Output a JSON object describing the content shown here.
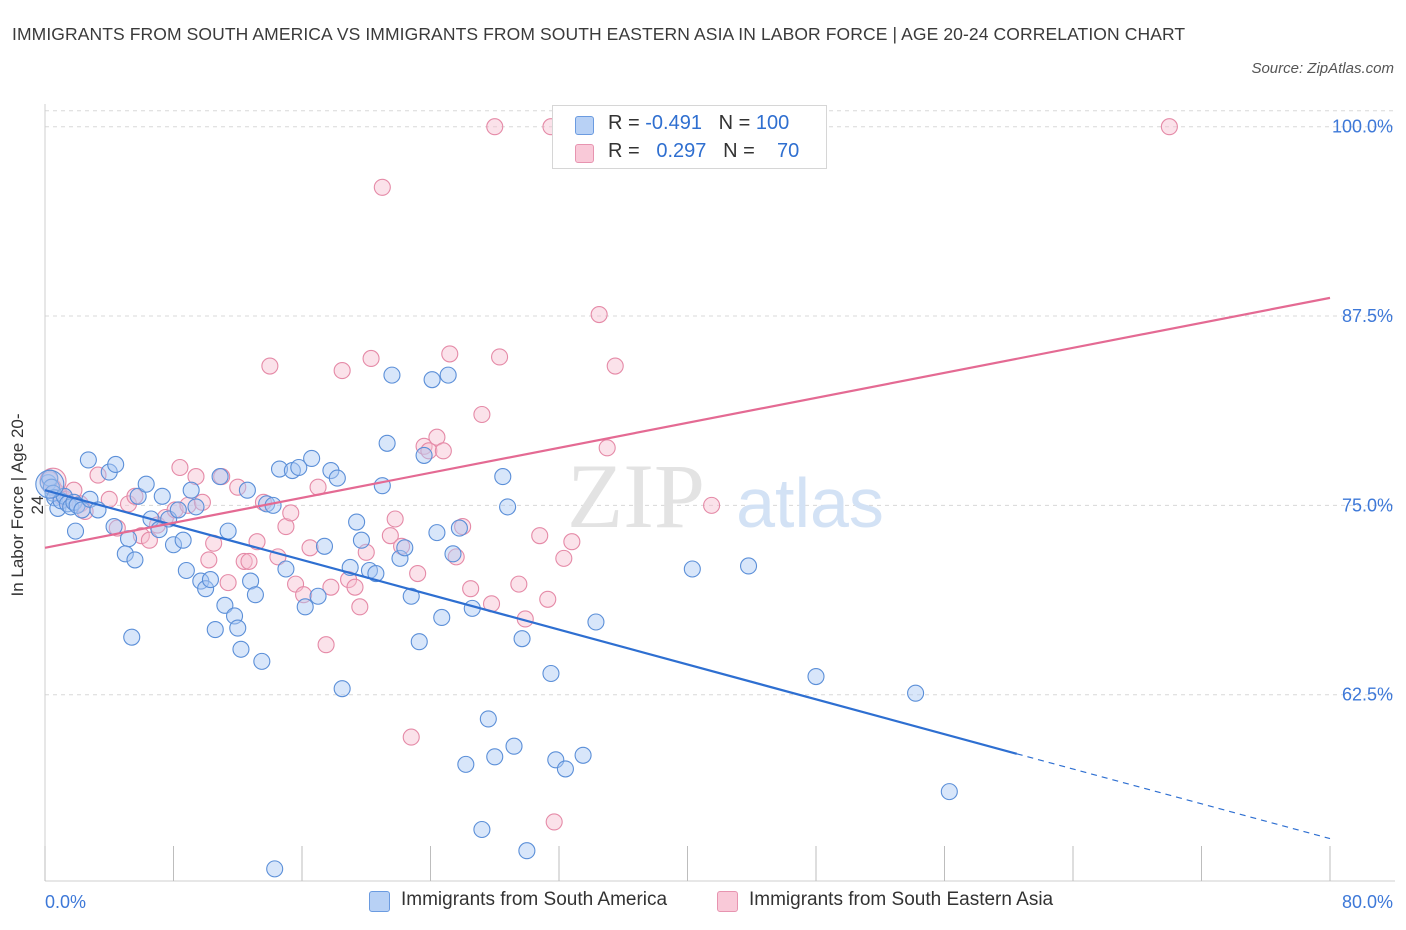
{
  "title": "IMMIGRANTS FROM SOUTH AMERICA VS IMMIGRANTS FROM SOUTH EASTERN ASIA IN LABOR FORCE | AGE 20-24 CORRELATION CHART",
  "source": "Source: ZipAtlas.com",
  "watermark": {
    "zip": "ZIP",
    "atlas": "atlas"
  },
  "legend": {
    "r_label": "R =",
    "n_label": "N =",
    "rows": [
      {
        "r": "-0.491",
        "n": "100"
      },
      {
        "r": "0.297",
        "n": "70"
      }
    ]
  },
  "colors": {
    "blue_fill": "#a9c8f3",
    "blue_stroke": "#5b8fd8",
    "blue_line": "#2e6fd1",
    "pink_fill": "#f7bfd0",
    "pink_stroke": "#e58aa7",
    "pink_line": "#e46a93",
    "tick_label": "#3d78d8",
    "grid": "#d8d8d8"
  },
  "chart_data": {
    "type": "scatter",
    "title": "IMMIGRANTS FROM SOUTH AMERICA VS IMMIGRANTS FROM SOUTH EASTERN ASIA IN LABOR FORCE | AGE 20-24 CORRELATION CHART",
    "xlabel": "",
    "ylabel": "In Labor Force | Age 20-24",
    "xlim": [
      0,
      80
    ],
    "ylim": [
      50.2,
      101.5
    ],
    "x_tick_labels": [
      "0.0%",
      "80.0%"
    ],
    "y_ticks": [
      62.5,
      75.0,
      87.5,
      100.0
    ],
    "y_tick_labels": [
      "62.5%",
      "75.0%",
      "87.5%",
      "100.0%"
    ],
    "grid": true,
    "legend_placement": "top-center",
    "series": [
      {
        "name": "Immigrants from South America",
        "color": "#5b8fd8",
        "trend": {
          "x": [
            0,
            60.5,
            80
          ],
          "y": [
            76.0,
            58.6,
            53.0
          ],
          "solid_until": 60.5
        },
        "points": [
          [
            0.2,
            76.5
          ],
          [
            0.3,
            76.8
          ],
          [
            0.4,
            76.2
          ],
          [
            0.5,
            75.8
          ],
          [
            0.6,
            75.5
          ],
          [
            0.8,
            74.8
          ],
          [
            1.0,
            75.3
          ],
          [
            1.2,
            75.6
          ],
          [
            1.4,
            75.1
          ],
          [
            1.6,
            74.9
          ],
          [
            1.8,
            75.2
          ],
          [
            2.0,
            75.0
          ],
          [
            2.3,
            74.7
          ],
          [
            2.8,
            75.4
          ],
          [
            1.9,
            73.3
          ],
          [
            2.7,
            78.0
          ],
          [
            4.0,
            77.2
          ],
          [
            4.4,
            77.7
          ],
          [
            3.3,
            74.7
          ],
          [
            4.3,
            73.6
          ],
          [
            5.2,
            72.8
          ],
          [
            5.0,
            71.8
          ],
          [
            5.6,
            71.4
          ],
          [
            5.4,
            66.3
          ],
          [
            5.8,
            75.6
          ],
          [
            6.3,
            76.4
          ],
          [
            6.6,
            74.1
          ],
          [
            7.1,
            73.4
          ],
          [
            7.3,
            75.6
          ],
          [
            7.7,
            74.1
          ],
          [
            8.0,
            72.4
          ],
          [
            8.3,
            74.7
          ],
          [
            8.6,
            72.7
          ],
          [
            8.8,
            70.7
          ],
          [
            9.1,
            76.0
          ],
          [
            9.4,
            74.9
          ],
          [
            9.7,
            70.0
          ],
          [
            10.0,
            69.5
          ],
          [
            10.3,
            70.1
          ],
          [
            10.6,
            66.8
          ],
          [
            10.9,
            76.9
          ],
          [
            11.2,
            68.4
          ],
          [
            11.4,
            73.3
          ],
          [
            11.8,
            67.7
          ],
          [
            12.0,
            66.9
          ],
          [
            12.2,
            65.5
          ],
          [
            12.6,
            76.0
          ],
          [
            12.8,
            70.0
          ],
          [
            13.1,
            69.1
          ],
          [
            13.5,
            64.7
          ],
          [
            13.8,
            75.1
          ],
          [
            14.2,
            75.0
          ],
          [
            14.6,
            77.4
          ],
          [
            15.0,
            70.8
          ],
          [
            15.4,
            77.3
          ],
          [
            15.8,
            77.5
          ],
          [
            16.2,
            68.3
          ],
          [
            16.6,
            78.1
          ],
          [
            17.0,
            69.0
          ],
          [
            17.4,
            72.3
          ],
          [
            17.8,
            77.3
          ],
          [
            18.2,
            76.8
          ],
          [
            18.5,
            62.9
          ],
          [
            19.0,
            70.9
          ],
          [
            19.4,
            73.9
          ],
          [
            19.7,
            72.7
          ],
          [
            20.2,
            70.7
          ],
          [
            20.6,
            70.5
          ],
          [
            21.0,
            76.3
          ],
          [
            21.3,
            79.1
          ],
          [
            21.6,
            83.6
          ],
          [
            22.1,
            71.5
          ],
          [
            22.4,
            72.2
          ],
          [
            22.8,
            69.0
          ],
          [
            23.3,
            66.0
          ],
          [
            23.6,
            78.3
          ],
          [
            24.1,
            83.3
          ],
          [
            24.4,
            73.2
          ],
          [
            24.7,
            67.6
          ],
          [
            25.1,
            83.6
          ],
          [
            25.4,
            71.8
          ],
          [
            25.8,
            73.5
          ],
          [
            26.2,
            57.9
          ],
          [
            26.6,
            68.2
          ],
          [
            27.2,
            53.6
          ],
          [
            27.6,
            60.9
          ],
          [
            28.0,
            58.4
          ],
          [
            28.5,
            76.9
          ],
          [
            28.8,
            74.9
          ],
          [
            29.2,
            59.1
          ],
          [
            29.7,
            66.2
          ],
          [
            30.0,
            52.2
          ],
          [
            31.5,
            63.9
          ],
          [
            31.8,
            58.2
          ],
          [
            32.4,
            57.6
          ],
          [
            33.5,
            58.5
          ],
          [
            34.3,
            67.3
          ],
          [
            40.3,
            70.8
          ],
          [
            43.8,
            71.0
          ],
          [
            48.0,
            63.7
          ],
          [
            54.2,
            62.6
          ],
          [
            56.3,
            56.1
          ],
          [
            14.3,
            51.0
          ]
        ]
      },
      {
        "name": "Immigrants from South Eastern Asia",
        "color": "#e58aa7",
        "trend": {
          "x": [
            0,
            80
          ],
          "y": [
            72.2,
            88.7
          ]
        },
        "points": [
          [
            0.3,
            76.7
          ],
          [
            0.5,
            76.2
          ],
          [
            0.7,
            75.9
          ],
          [
            1.0,
            75.6
          ],
          [
            1.3,
            75.4
          ],
          [
            1.8,
            76.0
          ],
          [
            2.2,
            75.1
          ],
          [
            2.5,
            74.6
          ],
          [
            3.3,
            77.0
          ],
          [
            4.0,
            75.4
          ],
          [
            4.5,
            73.5
          ],
          [
            5.2,
            75.1
          ],
          [
            5.6,
            75.6
          ],
          [
            6.0,
            73.0
          ],
          [
            6.5,
            72.7
          ],
          [
            7.0,
            73.7
          ],
          [
            7.5,
            74.2
          ],
          [
            8.1,
            74.7
          ],
          [
            8.4,
            77.5
          ],
          [
            8.9,
            75.0
          ],
          [
            9.4,
            76.9
          ],
          [
            9.8,
            75.2
          ],
          [
            10.2,
            71.4
          ],
          [
            10.5,
            72.5
          ],
          [
            11.0,
            76.9
          ],
          [
            11.4,
            69.9
          ],
          [
            12.0,
            76.2
          ],
          [
            12.4,
            71.3
          ],
          [
            12.7,
            71.3
          ],
          [
            13.2,
            72.6
          ],
          [
            13.6,
            75.2
          ],
          [
            14.0,
            84.2
          ],
          [
            14.5,
            71.6
          ],
          [
            15.0,
            73.6
          ],
          [
            15.3,
            74.5
          ],
          [
            15.6,
            69.8
          ],
          [
            16.1,
            69.1
          ],
          [
            16.5,
            72.2
          ],
          [
            17.0,
            76.2
          ],
          [
            17.5,
            65.8
          ],
          [
            17.8,
            69.6
          ],
          [
            18.5,
            83.9
          ],
          [
            18.9,
            70.1
          ],
          [
            19.3,
            69.6
          ],
          [
            19.6,
            68.3
          ],
          [
            20.0,
            71.9
          ],
          [
            20.3,
            84.7
          ],
          [
            21.0,
            96.0
          ],
          [
            21.5,
            73.0
          ],
          [
            21.8,
            74.1
          ],
          [
            22.2,
            72.3
          ],
          [
            22.8,
            59.7
          ],
          [
            23.2,
            70.5
          ],
          [
            23.6,
            78.9
          ],
          [
            23.9,
            78.6
          ],
          [
            24.4,
            79.5
          ],
          [
            24.8,
            78.6
          ],
          [
            25.2,
            85.0
          ],
          [
            25.6,
            71.6
          ],
          [
            26.0,
            73.6
          ],
          [
            26.5,
            69.5
          ],
          [
            27.2,
            81.0
          ],
          [
            27.8,
            68.5
          ],
          [
            28.3,
            84.8
          ],
          [
            29.5,
            69.8
          ],
          [
            29.9,
            67.5
          ],
          [
            30.8,
            73.0
          ],
          [
            31.3,
            68.8
          ],
          [
            31.7,
            54.1
          ],
          [
            32.3,
            71.5
          ],
          [
            32.8,
            72.6
          ],
          [
            34.5,
            87.6
          ],
          [
            35.0,
            78.8
          ],
          [
            35.5,
            84.2
          ],
          [
            41.5,
            75.0
          ],
          [
            28.0,
            100.0
          ],
          [
            31.5,
            100.0
          ],
          [
            32.8,
            100.0
          ],
          [
            70.0,
            100.0
          ]
        ]
      }
    ]
  }
}
